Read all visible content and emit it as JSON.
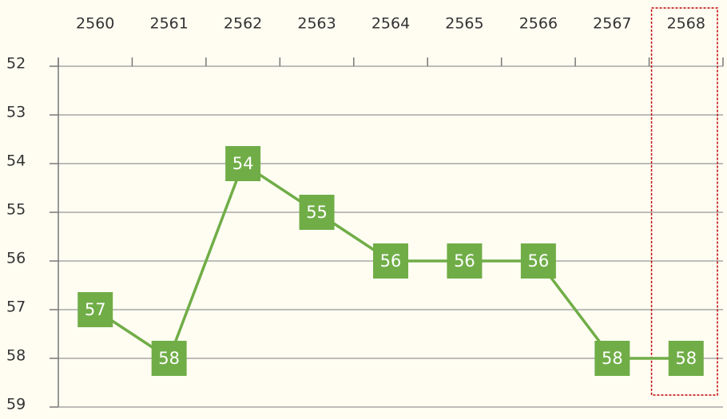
{
  "chart_data": {
    "type": "line",
    "categories": [
      "2560",
      "2561",
      "2562",
      "2563",
      "2564",
      "2565",
      "2566",
      "2567",
      "2568"
    ],
    "values": [
      57,
      58,
      54,
      55,
      56,
      56,
      56,
      58,
      58
    ],
    "color": "#70ad47",
    "ylim": [
      52,
      59
    ],
    "yticks": [
      52,
      53,
      54,
      55,
      56,
      57,
      58,
      59
    ],
    "y_inverted": true,
    "grid": true
  }
}
